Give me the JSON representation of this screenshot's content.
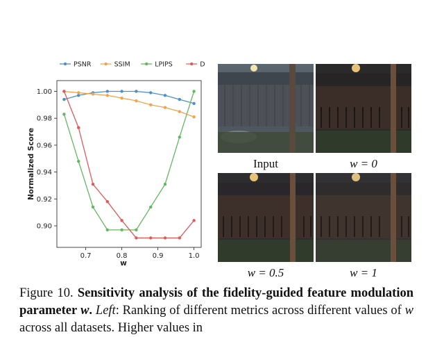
{
  "chart_data": {
    "type": "line",
    "xlabel": "w",
    "ylabel": "Normalized Score",
    "xlim": [
      0.62,
      1.02
    ],
    "ylim": [
      0.884,
      1.008
    ],
    "xticks": [
      "0.7",
      "0.8",
      "0.9",
      "1.0"
    ],
    "yticks": [
      "0.90",
      "0.92",
      "0.94",
      "0.96",
      "0.98",
      "1.00"
    ],
    "grid": false,
    "legend_position": "top",
    "x": [
      0.64,
      0.68,
      0.72,
      0.76,
      0.8,
      0.84,
      0.88,
      0.92,
      0.96,
      1.0
    ],
    "series": [
      {
        "name": "PSNR",
        "color": "#4e8fc8",
        "values": [
          0.994,
          0.997,
          0.999,
          1.0,
          1.0,
          1.0,
          0.999,
          0.997,
          0.994,
          0.991
        ]
      },
      {
        "name": "SSIM",
        "color": "#f5a24a",
        "values": [
          1.0,
          0.999,
          0.998,
          0.997,
          0.995,
          0.993,
          0.99,
          0.988,
          0.985,
          0.981
        ]
      },
      {
        "name": "LPIPS",
        "color": "#62b85e",
        "values": [
          0.983,
          0.948,
          0.914,
          0.897,
          0.897,
          0.897,
          0.914,
          0.931,
          0.966,
          1.0
        ]
      },
      {
        "name": "DISTS",
        "color": "#e05a5a",
        "values": [
          1.0,
          0.973,
          0.931,
          0.918,
          0.904,
          0.891,
          0.891,
          0.891,
          0.891,
          0.904
        ]
      }
    ]
  },
  "panels": [
    {
      "label": "Input"
    },
    {
      "label": "w = 0"
    },
    {
      "label": "w = 0.5"
    },
    {
      "label": "w = 1"
    }
  ],
  "caption": {
    "figure_no": "Figure 10.",
    "bold_title": "Sensitivity analysis of the fidelity-guided feature modulation parameter",
    "bold_var": "w",
    "left_label": "Left",
    "text": ": Ranking of different metrics across different values of",
    "text_var": "w",
    "text_end": "across all datasets. Higher values in"
  }
}
